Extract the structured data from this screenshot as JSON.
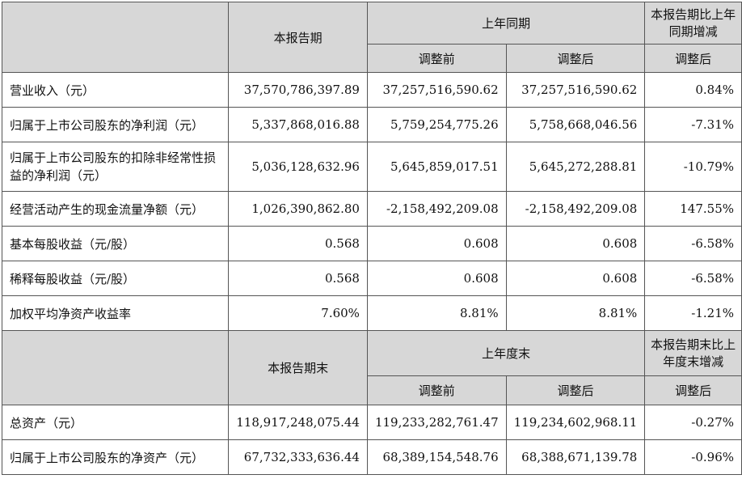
{
  "section1": {
    "header": {
      "current_period": "本报告期",
      "same_period_last_year": "上年同期",
      "yoy_change": "本报告期比上年同期增减",
      "before_adjust": "调整前",
      "after_adjust": "调整后",
      "after_adjust_change": "调整后"
    },
    "rows": [
      {
        "label": "营业收入（元）",
        "current": "37,570,786,397.89",
        "before": "37,257,516,590.62",
        "after": "37,257,516,590.62",
        "change": "0.84%"
      },
      {
        "label": "归属于上市公司股东的净利润（元）",
        "current": "5,337,868,016.88",
        "before": "5,759,254,775.26",
        "after": "5,758,668,046.56",
        "change": "-7.31%"
      },
      {
        "label": "归属于上市公司股东的扣除非经常性损益的净利润（元）",
        "current": "5,036,128,632.96",
        "before": "5,645,859,017.51",
        "after": "5,645,272,288.81",
        "change": "-10.79%"
      },
      {
        "label": "经营活动产生的现金流量净额（元）",
        "current": "1,026,390,862.80",
        "before": "-2,158,492,209.08",
        "after": "-2,158,492,209.08",
        "change": "147.55%"
      },
      {
        "label": "基本每股收益（元/股）",
        "current": "0.568",
        "before": "0.608",
        "after": "0.608",
        "change": "-6.58%"
      },
      {
        "label": "稀释每股收益（元/股）",
        "current": "0.568",
        "before": "0.608",
        "after": "0.608",
        "change": "-6.58%"
      },
      {
        "label": "加权平均净资产收益率",
        "current": "7.60%",
        "before": "8.81%",
        "after": "8.81%",
        "change": "-1.21%"
      }
    ]
  },
  "section2": {
    "header": {
      "current_period_end": "本报告期末",
      "last_year_end": "上年度末",
      "change_vs_last_year_end": "本报告期末比上年度末增减",
      "before_adjust": "调整前",
      "after_adjust": "调整后",
      "after_adjust_change": "调整后"
    },
    "rows": [
      {
        "label": "总资产（元）",
        "current": "118,917,248,075.44",
        "before": "119,233,282,761.47",
        "after": "119,234,602,968.11",
        "change": "-0.27%"
      },
      {
        "label": "归属于上市公司股东的净资产（元）",
        "current": "67,732,333,636.44",
        "before": "68,389,154,548.76",
        "after": "68,388,671,139.78",
        "change": "-0.96%"
      }
    ]
  }
}
